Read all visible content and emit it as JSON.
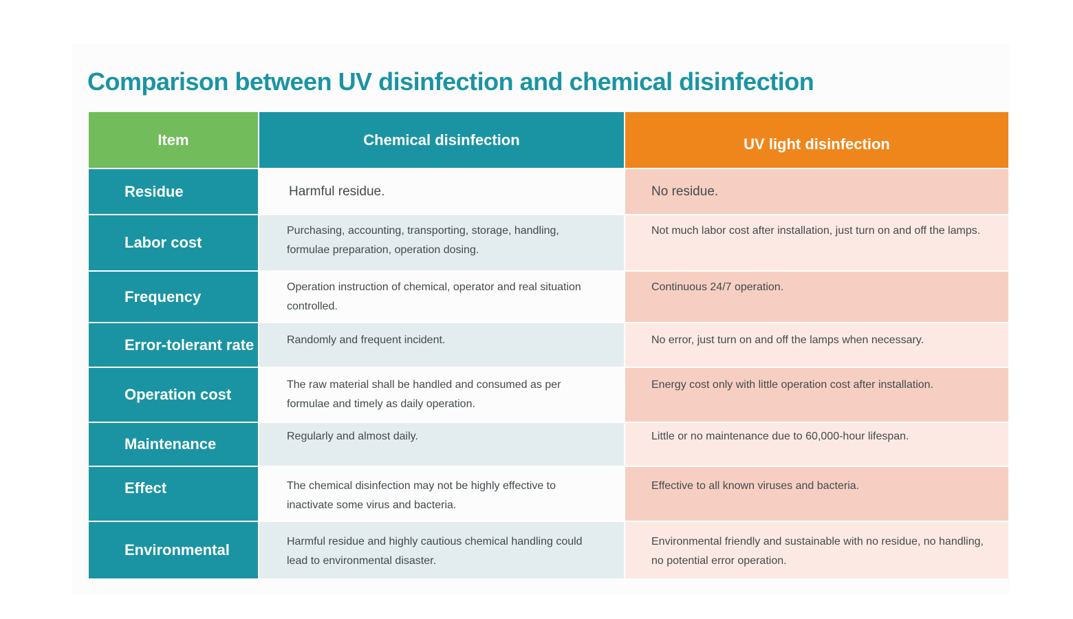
{
  "title": "Comparison between UV disinfection and chemical disinfection",
  "headers": {
    "item": "Item",
    "chemical": "Chemical disinfection",
    "uv": "UV light disinfection"
  },
  "colors": {
    "teal": "#1a94a3",
    "green": "#72bc5b",
    "orange": "#ef861c",
    "salmon": "#f6cfc2",
    "light_salmon": "#fde9e3",
    "light_gray_blue": "#e3ecee"
  },
  "rows": [
    {
      "item": "Residue",
      "chemical": "Harmful residue.",
      "uv": "No residue."
    },
    {
      "item": "Labor cost",
      "chemical": "Purchasing, accounting, transporting, storage, handling, formulae preparation, operation dosing.",
      "uv": "Not much labor cost after installation, just turn on and off the lamps."
    },
    {
      "item": "Frequency",
      "chemical": "Operation instruction of chemical, operator and real situation controlled.",
      "uv": "Continuous 24/7 operation."
    },
    {
      "item": "Error-tolerant rate",
      "chemical": "Randomly and frequent incident.",
      "uv": "No error, just turn on and off the lamps when necessary."
    },
    {
      "item": "Operation cost",
      "chemical": "The raw material shall be handled and consumed  as per formulae and timely as daily operation.",
      "uv": "Energy cost only with little operation cost after installation."
    },
    {
      "item": "Maintenance",
      "chemical": "Regularly and almost daily.",
      "uv": "Little or no maintenance due to 60,000-hour lifespan."
    },
    {
      "item": "Effect",
      "chemical": "The chemical disinfection may not be highly effective to inactivate some virus and bacteria.",
      "uv": "Effective to all known viruses and bacteria."
    },
    {
      "item": "Environmental",
      "chemical": "Harmful residue and highly cautious chemical handling could lead to environmental disaster.",
      "uv": "Environmental friendly and sustainable with no residue, no handling, no potential error operation."
    }
  ]
}
